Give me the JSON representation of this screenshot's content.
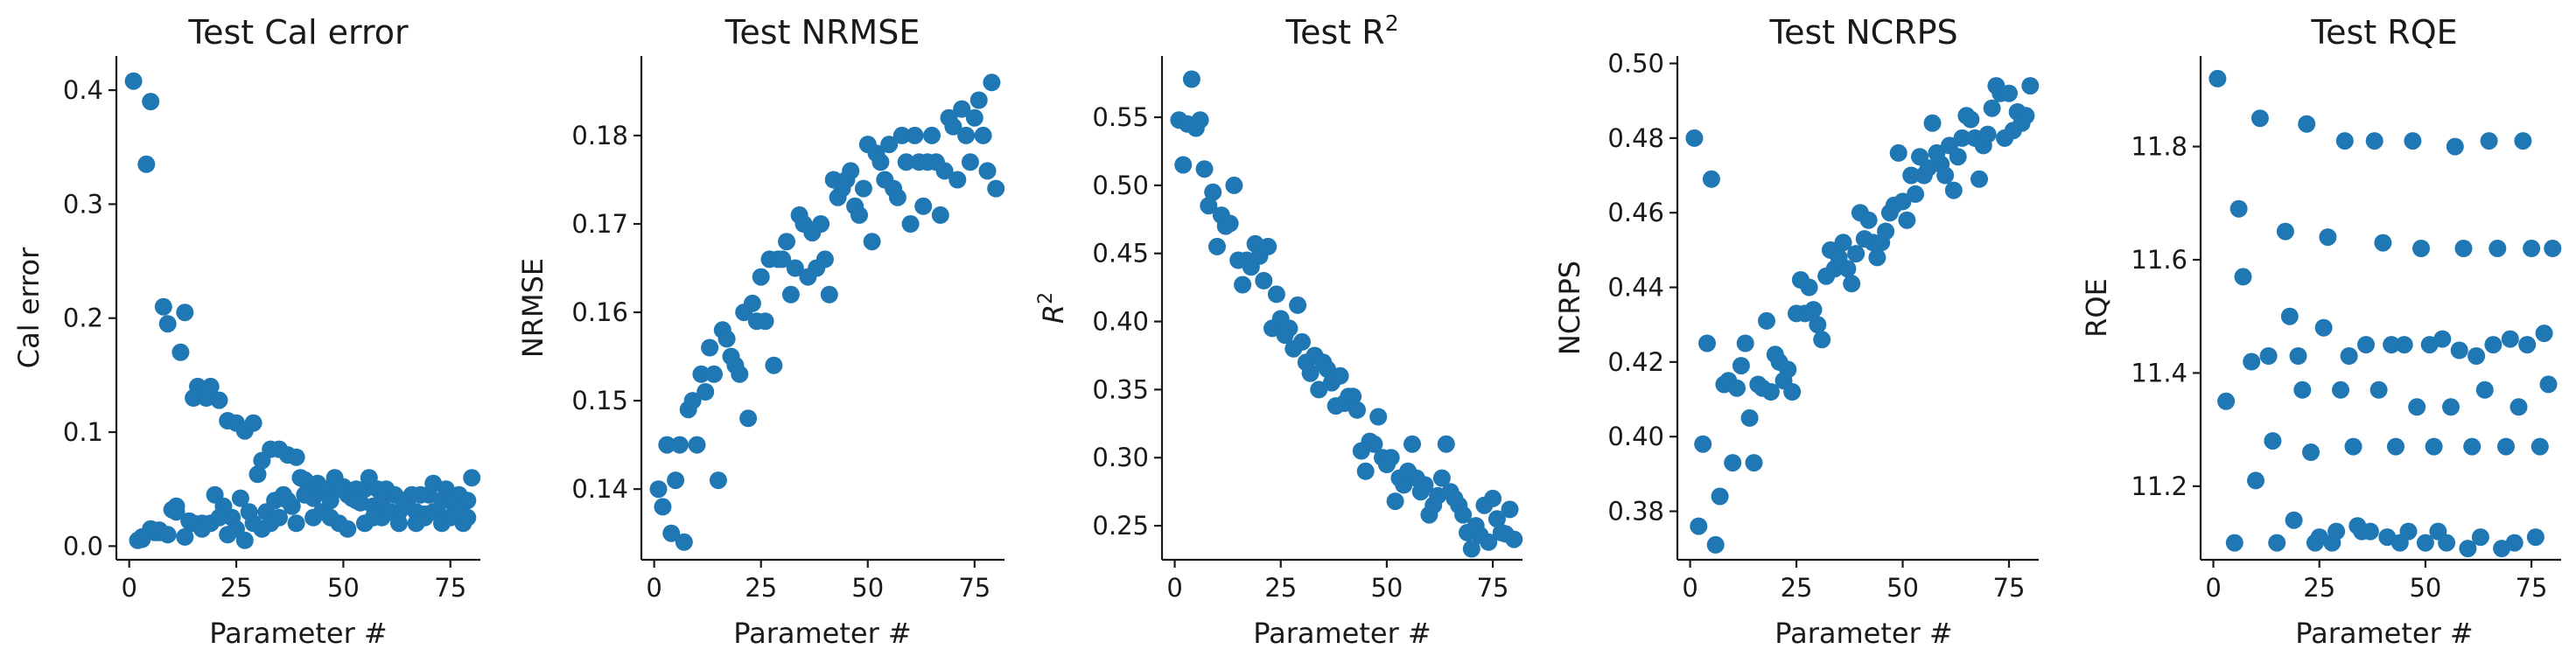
{
  "chart_data": [
    {
      "type": "scatter",
      "title": "Test Cal error",
      "xlabel": "Parameter #",
      "ylabel": "Cal error",
      "ylabel_math": false,
      "xlim": [
        -3,
        82
      ],
      "ylim": [
        -0.012,
        0.43
      ],
      "xticks": [
        0,
        25,
        50,
        75
      ],
      "xtick_labels": [
        "0",
        "25",
        "50",
        "75"
      ],
      "yticks": [
        0.0,
        0.1,
        0.2,
        0.3,
        0.4
      ],
      "ytick_labels": [
        "0.0",
        "0.1",
        "0.2",
        "0.3",
        "0.4"
      ],
      "marker_color": "#1f77b4",
      "grid": false,
      "x": [
        1,
        2,
        3,
        4,
        5,
        6,
        7,
        8,
        9,
        10,
        11,
        12,
        13,
        14,
        15,
        16,
        17,
        18,
        19,
        20,
        21,
        22,
        23,
        24,
        25,
        26,
        27,
        28,
        29,
        30,
        31,
        32,
        33,
        34,
        35,
        36,
        37,
        38,
        39,
        40,
        41,
        42,
        43,
        44,
        45,
        46,
        47,
        48,
        49,
        50,
        51,
        52,
        53,
        54,
        55,
        56,
        57,
        58,
        59,
        60,
        61,
        62,
        63,
        64,
        65,
        66,
        67,
        68,
        69,
        70,
        71,
        72,
        73,
        74,
        75,
        76,
        77,
        78,
        79,
        80,
        3,
        5,
        7,
        9,
        11,
        13,
        15,
        17,
        19,
        21,
        23,
        25,
        27,
        29,
        31,
        33,
        35,
        37,
        39,
        41,
        43,
        45,
        47,
        49,
        51,
        53,
        55,
        57,
        59,
        61,
        63,
        65,
        67,
        69,
        71,
        73,
        75,
        77,
        79
      ],
      "y": [
        0.408,
        0.005,
        0.006,
        0.335,
        0.39,
        0.012,
        0.014,
        0.21,
        0.195,
        0.032,
        0.035,
        0.17,
        0.205,
        0.022,
        0.13,
        0.14,
        0.02,
        0.13,
        0.14,
        0.045,
        0.128,
        0.035,
        0.11,
        0.025,
        0.108,
        0.042,
        0.101,
        0.03,
        0.108,
        0.063,
        0.075,
        0.03,
        0.085,
        0.04,
        0.085,
        0.045,
        0.08,
        0.035,
        0.078,
        0.06,
        0.058,
        0.045,
        0.042,
        0.055,
        0.05,
        0.05,
        0.04,
        0.06,
        0.05,
        0.052,
        0.045,
        0.042,
        0.05,
        0.038,
        0.05,
        0.06,
        0.035,
        0.05,
        0.04,
        0.05,
        0.03,
        0.045,
        0.03,
        0.04,
        0.035,
        0.045,
        0.03,
        0.045,
        0.028,
        0.045,
        0.055,
        0.03,
        0.04,
        0.05,
        0.04,
        0.035,
        0.045,
        0.02,
        0.04,
        0.06,
        0.008,
        0.015,
        0.012,
        0.01,
        0.03,
        0.008,
        0.02,
        0.015,
        0.02,
        0.025,
        0.01,
        0.015,
        0.005,
        0.02,
        0.015,
        0.02,
        0.025,
        0.04,
        0.02,
        0.045,
        0.025,
        0.03,
        0.025,
        0.02,
        0.015,
        0.04,
        0.02,
        0.025,
        0.025,
        0.03,
        0.02,
        0.035,
        0.02,
        0.025,
        0.03,
        0.02,
        0.025,
        0.03,
        0.025
      ]
    },
    {
      "type": "scatter",
      "title": "Test NRMSE",
      "xlabel": "Parameter #",
      "ylabel": "NRMSE",
      "ylabel_math": false,
      "xlim": [
        -3,
        82
      ],
      "ylim": [
        0.132,
        0.189
      ],
      "xticks": [
        0,
        25,
        50,
        75
      ],
      "xtick_labels": [
        "0",
        "25",
        "50",
        "75"
      ],
      "yticks": [
        0.14,
        0.15,
        0.16,
        0.17,
        0.18
      ],
      "ytick_labels": [
        "0.14",
        "0.15",
        "0.16",
        "0.17",
        "0.18"
      ],
      "marker_color": "#1f77b4",
      "grid": false,
      "x": [
        1,
        2,
        3,
        4,
        5,
        6,
        7,
        8,
        9,
        10,
        11,
        12,
        13,
        14,
        15,
        16,
        17,
        18,
        19,
        20,
        21,
        22,
        23,
        24,
        25,
        26,
        27,
        28,
        29,
        30,
        31,
        32,
        33,
        34,
        35,
        36,
        37,
        38,
        39,
        40,
        41,
        42,
        43,
        44,
        45,
        46,
        47,
        48,
        49,
        50,
        51,
        52,
        53,
        54,
        55,
        56,
        57,
        58,
        59,
        60,
        61,
        62,
        63,
        64,
        65,
        66,
        67,
        68,
        69,
        70,
        71,
        72,
        73,
        74,
        75,
        76,
        77,
        78,
        79,
        80
      ],
      "y": [
        0.14,
        0.138,
        0.145,
        0.135,
        0.141,
        0.145,
        0.134,
        0.149,
        0.15,
        0.145,
        0.153,
        0.151,
        0.156,
        0.153,
        0.141,
        0.158,
        0.157,
        0.155,
        0.154,
        0.153,
        0.16,
        0.148,
        0.161,
        0.159,
        0.164,
        0.159,
        0.166,
        0.154,
        0.166,
        0.166,
        0.168,
        0.162,
        0.165,
        0.171,
        0.17,
        0.164,
        0.169,
        0.165,
        0.17,
        0.166,
        0.162,
        0.175,
        0.173,
        0.174,
        0.175,
        0.176,
        0.172,
        0.171,
        0.174,
        0.179,
        0.168,
        0.178,
        0.177,
        0.175,
        0.179,
        0.174,
        0.173,
        0.18,
        0.177,
        0.17,
        0.18,
        0.177,
        0.172,
        0.177,
        0.18,
        0.177,
        0.171,
        0.176,
        0.182,
        0.181,
        0.175,
        0.183,
        0.18,
        0.177,
        0.182,
        0.184,
        0.18,
        0.176,
        0.186,
        0.174
      ]
    },
    {
      "type": "scatter",
      "title": "Test R",
      "title_superscript": "2",
      "xlabel": "Parameter #",
      "ylabel": "R",
      "ylabel_superscript": "2",
      "ylabel_math": true,
      "xlim": [
        -3,
        82
      ],
      "ylim": [
        0.225,
        0.595
      ],
      "xticks": [
        0,
        25,
        50,
        75
      ],
      "xtick_labels": [
        "0",
        "25",
        "50",
        "75"
      ],
      "yticks": [
        0.25,
        0.3,
        0.35,
        0.4,
        0.45,
        0.5,
        0.55
      ],
      "ytick_labels": [
        "0.25",
        "0.30",
        "0.35",
        "0.40",
        "0.45",
        "0.50",
        "0.55"
      ],
      "marker_color": "#1f77b4",
      "grid": false,
      "x": [
        1,
        2,
        3,
        4,
        5,
        6,
        7,
        8,
        9,
        10,
        11,
        12,
        13,
        14,
        15,
        16,
        17,
        18,
        19,
        20,
        21,
        22,
        23,
        24,
        25,
        26,
        27,
        28,
        29,
        30,
        31,
        32,
        33,
        34,
        35,
        36,
        37,
        38,
        39,
        40,
        41,
        42,
        43,
        44,
        45,
        46,
        47,
        48,
        49,
        50,
        51,
        52,
        53,
        54,
        55,
        56,
        57,
        58,
        59,
        60,
        61,
        62,
        63,
        64,
        65,
        66,
        67,
        68,
        69,
        70,
        71,
        72,
        73,
        74,
        75,
        76,
        77,
        78,
        79,
        80
      ],
      "y": [
        0.548,
        0.515,
        0.545,
        0.578,
        0.542,
        0.548,
        0.512,
        0.485,
        0.495,
        0.455,
        0.478,
        0.47,
        0.472,
        0.5,
        0.445,
        0.427,
        0.445,
        0.44,
        0.457,
        0.448,
        0.43,
        0.455,
        0.395,
        0.42,
        0.402,
        0.39,
        0.395,
        0.38,
        0.412,
        0.385,
        0.37,
        0.362,
        0.375,
        0.35,
        0.37,
        0.365,
        0.355,
        0.338,
        0.36,
        0.34,
        0.345,
        0.345,
        0.335,
        0.305,
        0.29,
        0.312,
        0.31,
        0.33,
        0.3,
        0.295,
        0.3,
        0.268,
        0.285,
        0.28,
        0.29,
        0.31,
        0.285,
        0.275,
        0.28,
        0.258,
        0.265,
        0.272,
        0.285,
        0.31,
        0.275,
        0.27,
        0.265,
        0.258,
        0.245,
        0.233,
        0.25,
        0.243,
        0.265,
        0.238,
        0.27,
        0.255,
        0.245,
        0.244,
        0.262,
        0.24
      ]
    },
    {
      "type": "scatter",
      "title": "Test NCRPS",
      "xlabel": "Parameter #",
      "ylabel": "NCRPS",
      "ylabel_math": false,
      "xlim": [
        -3,
        82
      ],
      "ylim": [
        0.367,
        0.502
      ],
      "xticks": [
        0,
        25,
        50,
        75
      ],
      "xtick_labels": [
        "0",
        "25",
        "50",
        "75"
      ],
      "yticks": [
        0.38,
        0.4,
        0.42,
        0.44,
        0.46,
        0.48,
        0.5
      ],
      "ytick_labels": [
        "0.38",
        "0.40",
        "0.42",
        "0.44",
        "0.46",
        "0.48",
        "0.50"
      ],
      "marker_color": "#1f77b4",
      "grid": false,
      "x": [
        1,
        2,
        3,
        4,
        5,
        6,
        7,
        8,
        9,
        10,
        11,
        12,
        13,
        14,
        15,
        16,
        17,
        18,
        19,
        20,
        21,
        22,
        23,
        24,
        25,
        26,
        27,
        28,
        29,
        30,
        31,
        32,
        33,
        34,
        35,
        36,
        37,
        38,
        39,
        40,
        41,
        42,
        43,
        44,
        45,
        46,
        47,
        48,
        49,
        50,
        51,
        52,
        53,
        54,
        55,
        56,
        57,
        58,
        59,
        60,
        61,
        62,
        63,
        64,
        65,
        66,
        67,
        68,
        69,
        70,
        71,
        72,
        73,
        74,
        75,
        76,
        77,
        78,
        79,
        80
      ],
      "y": [
        0.48,
        0.376,
        0.398,
        0.425,
        0.469,
        0.371,
        0.384,
        0.414,
        0.415,
        0.393,
        0.413,
        0.419,
        0.425,
        0.405,
        0.393,
        0.414,
        0.413,
        0.431,
        0.412,
        0.422,
        0.42,
        0.415,
        0.418,
        0.412,
        0.433,
        0.442,
        0.433,
        0.44,
        0.434,
        0.43,
        0.426,
        0.443,
        0.45,
        0.445,
        0.448,
        0.452,
        0.445,
        0.441,
        0.449,
        0.46,
        0.453,
        0.458,
        0.452,
        0.448,
        0.452,
        0.455,
        0.46,
        0.462,
        0.476,
        0.463,
        0.458,
        0.47,
        0.465,
        0.475,
        0.47,
        0.472,
        0.484,
        0.476,
        0.473,
        0.47,
        0.478,
        0.466,
        0.475,
        0.48,
        0.486,
        0.485,
        0.48,
        0.469,
        0.478,
        0.481,
        0.488,
        0.494,
        0.492,
        0.48,
        0.492,
        0.482,
        0.487,
        0.484,
        0.486,
        0.494
      ]
    },
    {
      "type": "scatter",
      "title": "Test RQE",
      "xlabel": "Parameter #",
      "ylabel": "RQE",
      "ylabel_math": false,
      "xlim": [
        -3,
        82
      ],
      "ylim": [
        11.07,
        11.96
      ],
      "xticks": [
        0,
        25,
        50,
        75
      ],
      "xtick_labels": [
        "0",
        "25",
        "50",
        "75"
      ],
      "yticks": [
        11.2,
        11.4,
        11.6,
        11.8
      ],
      "ytick_labels": [
        "11.2",
        "11.4",
        "11.6",
        "11.8"
      ],
      "marker_color": "#1f77b4",
      "grid": false,
      "x": [
        1,
        3,
        5,
        6,
        7,
        9,
        10,
        11,
        13,
        14,
        15,
        17,
        18,
        19,
        20,
        21,
        22,
        23,
        24,
        25,
        26,
        27,
        28,
        29,
        30,
        31,
        32,
        33,
        34,
        35,
        36,
        37,
        38,
        39,
        40,
        41,
        42,
        43,
        44,
        45,
        46,
        47,
        48,
        49,
        50,
        51,
        52,
        53,
        54,
        55,
        56,
        57,
        58,
        59,
        60,
        61,
        62,
        63,
        64,
        65,
        66,
        67,
        68,
        69,
        70,
        71,
        72,
        73,
        74,
        75,
        76,
        77,
        78,
        79,
        80
      ],
      "y": [
        11.92,
        11.35,
        11.1,
        11.69,
        11.57,
        11.42,
        11.21,
        11.85,
        11.43,
        11.28,
        11.1,
        11.65,
        11.5,
        11.14,
        11.43,
        11.37,
        11.84,
        11.26,
        11.1,
        11.11,
        11.48,
        11.64,
        11.1,
        11.12,
        11.37,
        11.81,
        11.43,
        11.27,
        11.13,
        11.12,
        11.45,
        11.12,
        11.81,
        11.37,
        11.63,
        11.11,
        11.45,
        11.27,
        11.1,
        11.45,
        11.12,
        11.81,
        11.34,
        11.62,
        11.1,
        11.45,
        11.27,
        11.12,
        11.46,
        11.1,
        11.34,
        11.8,
        11.44,
        11.62,
        11.09,
        11.27,
        11.43,
        11.11,
        11.37,
        11.81,
        11.45,
        11.62,
        11.09,
        11.27,
        11.46,
        11.1,
        11.34,
        11.81,
        11.45,
        11.62,
        11.11,
        11.27,
        11.47,
        11.38,
        11.62
      ]
    }
  ]
}
